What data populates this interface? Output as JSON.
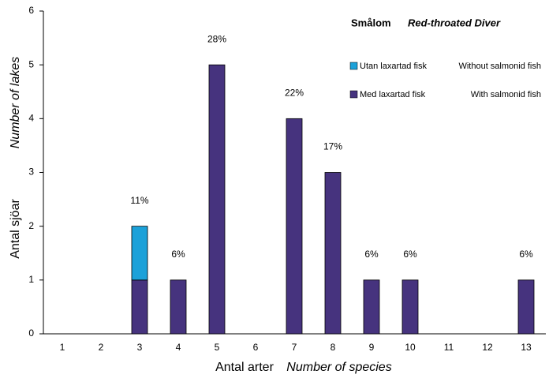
{
  "chart_data": {
    "type": "stacked_bar",
    "title": "Smålom",
    "subtitle": "Red-throated Diver",
    "x_label": "Antal arter",
    "x_label_en": "Number of species",
    "y_label": "Antal sjöar",
    "y_label_en": "Number of lakes",
    "categories": [
      "1",
      "2",
      "3",
      "4",
      "5",
      "6",
      "7",
      "8",
      "9",
      "10",
      "11",
      "12",
      "13"
    ],
    "series": [
      {
        "name": "Med laxartad fisk",
        "name_en": "With salmonid fish",
        "color": "#46337e",
        "values": [
          0,
          0,
          1,
          1,
          5,
          0,
          4,
          3,
          1,
          1,
          0,
          0,
          1
        ]
      },
      {
        "name": "Utan laxartad fisk",
        "name_en": "Without salmonid fish",
        "color": "#1ba1d9",
        "values": [
          0,
          0,
          1,
          0,
          0,
          0,
          0,
          0,
          0,
          0,
          0,
          0,
          0
        ]
      }
    ],
    "annotations": [
      {
        "category": "3",
        "text": "11%"
      },
      {
        "category": "4",
        "text": "6%"
      },
      {
        "category": "5",
        "text": "28%"
      },
      {
        "category": "7",
        "text": "22%"
      },
      {
        "category": "8",
        "text": "17%"
      },
      {
        "category": "9",
        "text": "6%"
      },
      {
        "category": "10",
        "text": "6%"
      },
      {
        "category": "13",
        "text": "6%"
      }
    ],
    "ylim": [
      0,
      6
    ],
    "yticks": [
      0,
      1,
      2,
      3,
      4,
      5,
      6
    ],
    "grid": false
  }
}
